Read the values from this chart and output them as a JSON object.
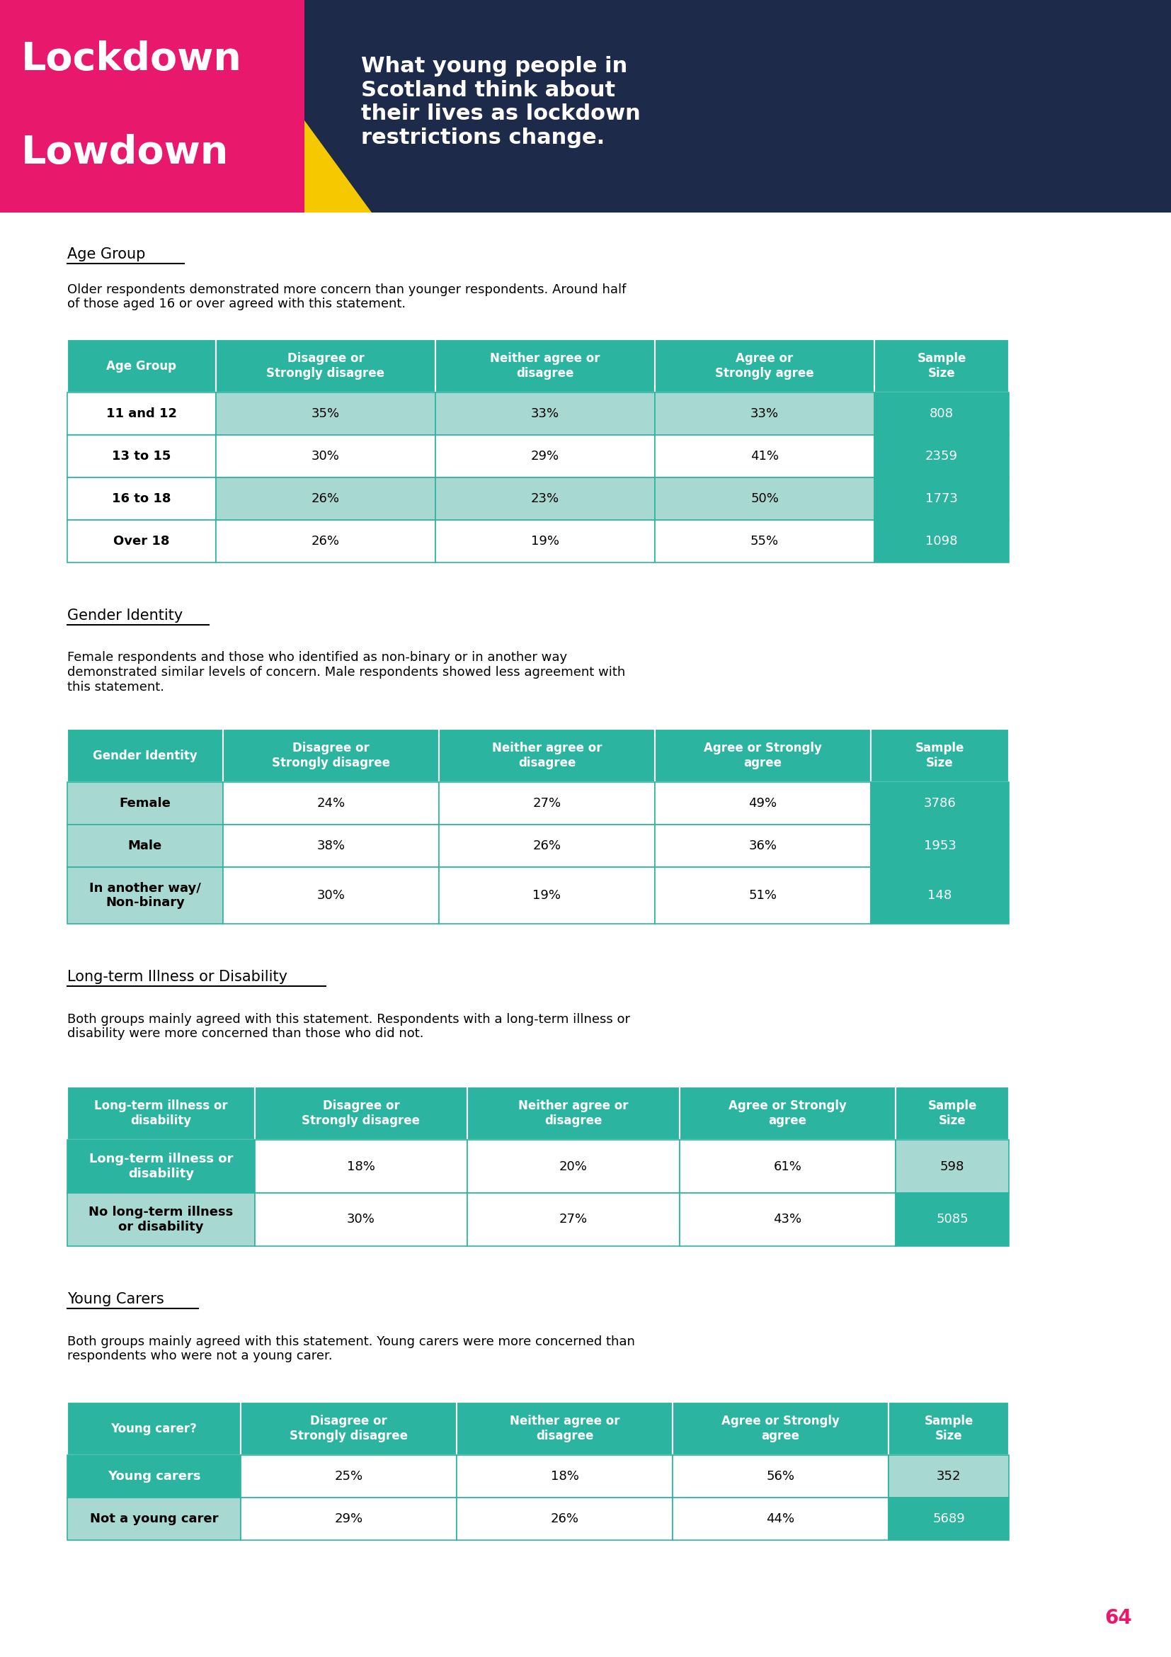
{
  "header_bg": "#1e2a4a",
  "pink": "#e8186d",
  "yellow": "#f5c800",
  "teal": "#2bb5a0",
  "teal_light": "#7fd4c8",
  "white": "#ffffff",
  "black": "#000000",
  "page_number": "64",
  "page_number_color": "#e8186d",
  "section1_heading": "Age Group",
  "section1_body": "Older respondents demonstrated more concern than younger respondents. Around half\nof those aged 16 or over agreed with this statement.",
  "table1_headers": [
    "Age Group",
    "Disagree or\nStrongly disagree",
    "Neither agree or\ndisagree",
    "Agree or\nStrongly agree",
    "Sample\nSize"
  ],
  "table1_rows": [
    [
      "11 and 12",
      "35%",
      "33%",
      "33%",
      "808"
    ],
    [
      "13 to 15",
      "30%",
      "29%",
      "41%",
      "2359"
    ],
    [
      "16 to 18",
      "26%",
      "23%",
      "50%",
      "1773"
    ],
    [
      "Over 18",
      "26%",
      "19%",
      "55%",
      "1098"
    ]
  ],
  "section2_heading": "Gender Identity",
  "section2_body": "Female respondents and those who identified as non-binary or in another way\ndemonstrated similar levels of concern. Male respondents showed less agreement with\nthis statement.",
  "table2_headers": [
    "Gender Identity",
    "Disagree or\nStrongly disagree",
    "Neither agree or\ndisagree",
    "Agree or Strongly\nagree",
    "Sample\nSize"
  ],
  "table2_rows": [
    [
      "Female",
      "24%",
      "27%",
      "49%",
      "3786"
    ],
    [
      "Male",
      "38%",
      "26%",
      "36%",
      "1953"
    ],
    [
      "In another way/\nNon-binary",
      "30%",
      "19%",
      "51%",
      "148"
    ]
  ],
  "section3_heading": "Long-term Illness or Disability",
  "section3_body": "Both groups mainly agreed with this statement. Respondents with a long-term illness or\ndisability were more concerned than those who did not.",
  "table3_headers": [
    "Long-term illness or\ndisability",
    "Disagree or\nStrongly disagree",
    "Neither agree or\ndisagree",
    "Agree or Strongly\nagree",
    "Sample\nSize"
  ],
  "table3_rows": [
    [
      "Long-term illness or\ndisability",
      "18%",
      "20%",
      "61%",
      "598"
    ],
    [
      "No long-term illness\nor disability",
      "30%",
      "27%",
      "43%",
      "5085"
    ]
  ],
  "section4_heading": "Young Carers",
  "section4_body": "Both groups mainly agreed with this statement. Young carers were more concerned than\nrespondents who were not a young carer.",
  "table4_headers": [
    "Young carer?",
    "Disagree or\nStrongly disagree",
    "Neither agree or\ndisagree",
    "Agree or Strongly\nagree",
    "Sample\nSize"
  ],
  "table4_rows": [
    [
      "Young carers",
      "25%",
      "18%",
      "56%",
      "352"
    ],
    [
      "Not a young carer",
      "29%",
      "26%",
      "44%",
      "5689"
    ]
  ]
}
